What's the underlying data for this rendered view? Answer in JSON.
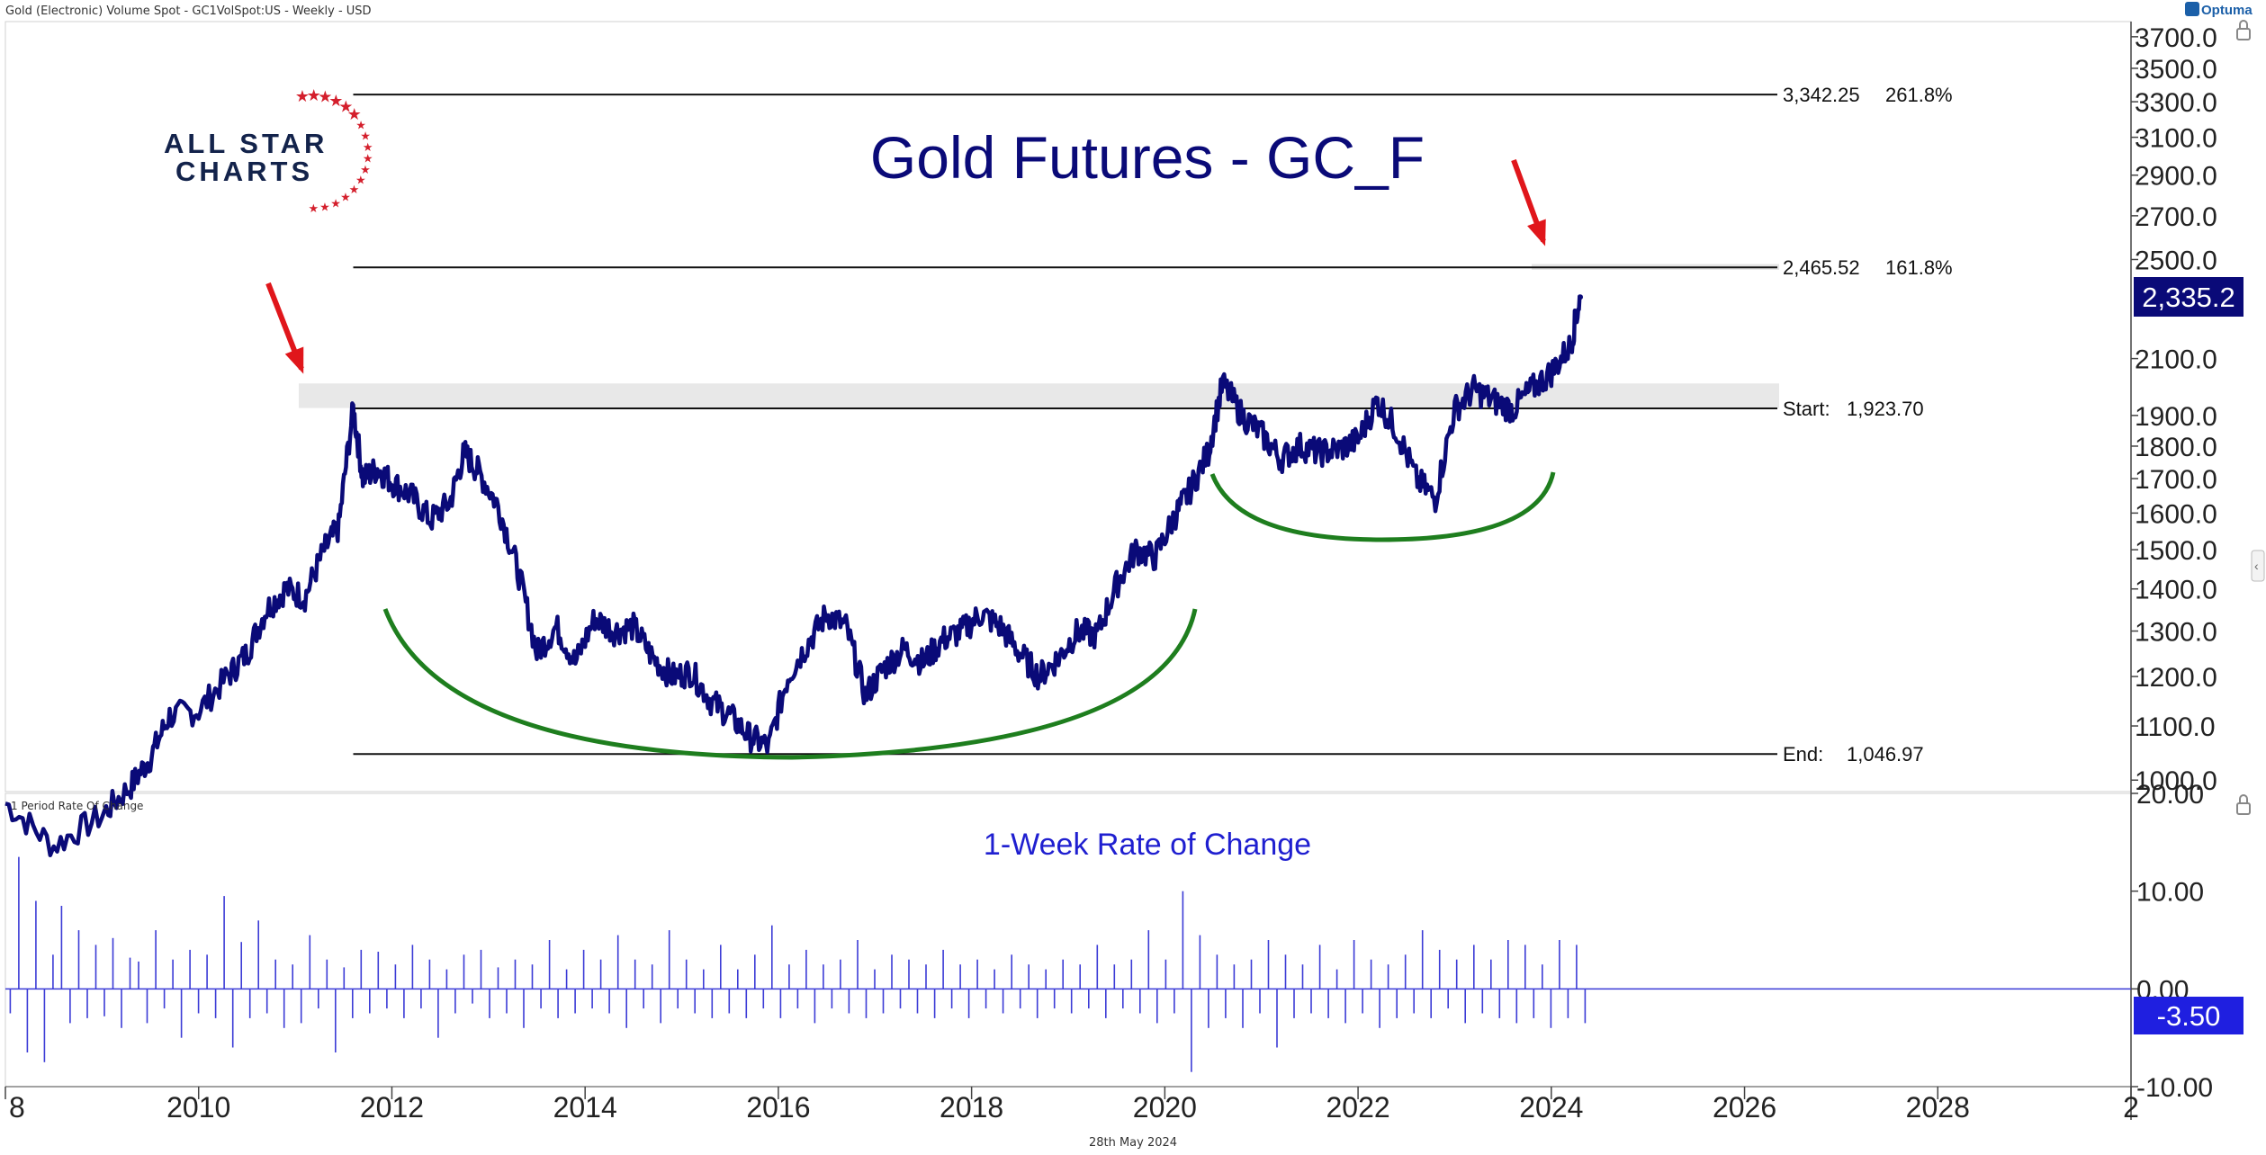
{
  "header": {
    "instrument": "Gold (Electronic) Volume Spot - GC1VolSpot:US - Weekly - USD",
    "brand": "Optuma"
  },
  "footer": {
    "date": "28th May 2024"
  },
  "logo": {
    "line1": "ALL STAR",
    "line2": "CHARTS"
  },
  "colors": {
    "price": "#0a0a78",
    "roc": "#3b3bd6",
    "title": "#0a0a78",
    "roc_title": "#1f1fd0",
    "arrow": "#e0161b",
    "arc": "#1e7e1e",
    "star": "#d41f2c",
    "logo_text": "#13234b",
    "band": "#d9d9d9"
  },
  "chart_data": [
    {
      "type": "line",
      "title": "Gold Futures - GC_F",
      "y_scale": "log",
      "ylim": [
        980,
        3800
      ],
      "xlim": [
        2008,
        2030
      ],
      "y_ticks": [
        "1000.0",
        "1100.0",
        "1200.0",
        "1300.0",
        "1400.0",
        "1500.0",
        "1600.0",
        "1700.0",
        "1800.0",
        "1900.0",
        "2100.0",
        "2500.0",
        "2700.0",
        "2900.0",
        "3100.0",
        "3300.0",
        "3500.0",
        "3700.0"
      ],
      "x_ticks": [
        "8",
        "2010",
        "2012",
        "2014",
        "2016",
        "2018",
        "2020",
        "2022",
        "2024",
        "2026",
        "2028",
        "2"
      ],
      "last_price": "2,335.2",
      "fib_levels": [
        {
          "price": 3342.25,
          "label": "3,342.25",
          "pct": "261.8%"
        },
        {
          "price": 2465.52,
          "label": "2,465.52",
          "pct": "161.8%"
        },
        {
          "price": 1923.7,
          "label": "Start:",
          "value": "1,923.70"
        },
        {
          "price": 1046.97,
          "label": "End:",
          "value": "1,046.97"
        }
      ],
      "series": [
        {
          "x": [
            2008.0,
            2008.5,
            2009.0,
            2009.3,
            2009.5,
            2009.7,
            2010.0,
            2010.3,
            2010.5,
            2010.7,
            2010.9,
            2011.1,
            2011.3,
            2011.45,
            2011.6,
            2011.7,
            2011.85,
            2012.0,
            2012.2,
            2012.4,
            2012.6,
            2012.75,
            2012.9,
            2013.1,
            2013.3,
            2013.5,
            2013.7,
            2013.9,
            2014.1,
            2014.3,
            2014.5,
            2014.7,
            2014.9,
            2015.1,
            2015.3,
            2015.5,
            2015.7,
            2015.9,
            2016.1,
            2016.3,
            2016.5,
            2016.7,
            2016.9,
            2017.1,
            2017.3,
            2017.5,
            2017.7,
            2017.9,
            2018.1,
            2018.3,
            2018.5,
            2018.7,
            2018.9,
            2019.1,
            2019.3,
            2019.5,
            2019.7,
            2019.9,
            2020.1,
            2020.25,
            2020.45,
            2020.6,
            2020.8,
            2021.0,
            2021.2,
            2021.4,
            2021.6,
            2021.8,
            2022.0,
            2022.2,
            2022.4,
            2022.6,
            2022.8,
            2023.0,
            2023.2,
            2023.4,
            2023.6,
            2023.8,
            2024.0,
            2024.2,
            2024.3
          ],
          "values": [
            960,
            890,
            940,
            990,
            1040,
            1120,
            1130,
            1200,
            1250,
            1350,
            1400,
            1380,
            1500,
            1560,
            1920,
            1700,
            1730,
            1690,
            1650,
            1580,
            1630,
            1780,
            1720,
            1620,
            1450,
            1250,
            1310,
            1230,
            1330,
            1300,
            1310,
            1240,
            1200,
            1210,
            1150,
            1120,
            1080,
            1060,
            1200,
            1270,
            1340,
            1310,
            1160,
            1220,
            1260,
            1230,
            1280,
            1300,
            1340,
            1310,
            1250,
            1200,
            1240,
            1300,
            1290,
            1410,
            1500,
            1480,
            1590,
            1660,
            1780,
            2010,
            1900,
            1840,
            1760,
            1800,
            1780,
            1790,
            1820,
            1950,
            1850,
            1700,
            1640,
            1920,
            1990,
            1950,
            1920,
            1990,
            2050,
            2150,
            2340
          ]
        }
      ]
    },
    {
      "type": "bar",
      "title": "1-Week Rate of Change",
      "panel_label": "1 Period Rate Of Change",
      "ylim": [
        -10,
        20
      ],
      "y_ticks": [
        "-10.00",
        "0.00",
        "10.00",
        "20.00"
      ],
      "last_value": "-3.50",
      "series": [
        {
          "name": "",
          "values": [
            -2.5,
            13.5,
            -6.5,
            9.0,
            -7.5,
            3.5,
            8.5,
            -3.5,
            6.0,
            -3.0,
            4.5,
            -2.8,
            5.2,
            -4.0,
            3.2,
            2.8,
            -3.5,
            6.0,
            -2.0,
            3.0,
            -5.0,
            4.0,
            -2.5,
            3.5,
            -3.0,
            9.5,
            -6.0,
            4.8,
            -3.0,
            7.0,
            -2.5,
            3.0,
            -4.0,
            2.5,
            -3.5,
            5.5,
            -2.0,
            3.0,
            -6.5,
            2.2,
            -3.0,
            4.0,
            -2.5,
            3.8,
            -2.0,
            2.5,
            -3.0,
            4.5,
            -2.0,
            3.0,
            -5.0,
            2.0,
            -2.5,
            3.5,
            -1.5,
            4.0,
            -3.0,
            2.2,
            -2.5,
            3.0,
            -4.0,
            2.5,
            -2.0,
            5.0,
            -3.0,
            2.0,
            -2.5,
            4.0,
            -2.0,
            3.0,
            -2.5,
            5.5,
            -4.0,
            3.0,
            -2.0,
            2.5,
            -3.5,
            6.0,
            -2.0,
            3.0,
            -2.5,
            2.0,
            -3.0,
            4.5,
            -2.5,
            2.0,
            -3.0,
            3.5,
            -2.0,
            6.5,
            -3.0,
            2.5,
            -2.0,
            4.0,
            -3.5,
            2.5,
            -2.0,
            3.0,
            -2.5,
            5.0,
            -3.0,
            2.0,
            -2.5,
            3.5,
            -2.0,
            3.0,
            -2.5,
            2.5,
            -3.0,
            4.0,
            -2.0,
            2.5,
            -3.0,
            3.0,
            -2.0,
            2.0,
            -2.5,
            3.5,
            -2.0,
            2.5,
            -3.0,
            2.0,
            -2.0,
            3.0,
            -2.5,
            2.5,
            -2.0,
            4.5,
            -3.0,
            2.5,
            -2.0,
            3.0,
            -2.5,
            6.0,
            -3.5,
            3.0,
            -2.5,
            10.0,
            -8.5,
            5.5,
            -4.0,
            3.5,
            -3.0,
            2.5,
            -4.0,
            3.0,
            -2.5,
            5.0,
            -6.0,
            3.5,
            -3.0,
            2.5,
            -2.5,
            4.5,
            -3.0,
            2.0,
            -3.5,
            5.0,
            -2.5,
            3.0,
            -4.0,
            2.5,
            -3.0,
            3.5,
            -2.5,
            6.0,
            -3.0,
            4.0,
            -2.0,
            3.0,
            -3.5,
            4.5,
            -2.5,
            3.0,
            -3.0,
            5.0,
            -3.5,
            4.5,
            -3.0,
            2.5,
            -4.0,
            5.0,
            -3.0,
            4.5,
            -3.5
          ]
        }
      ]
    }
  ]
}
